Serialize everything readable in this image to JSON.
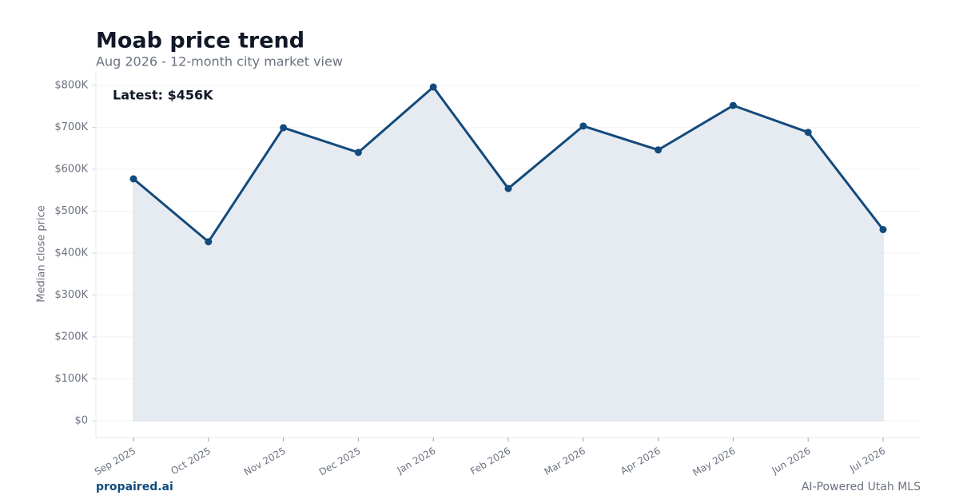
{
  "chart_data": {
    "type": "line",
    "title": "Moab price trend",
    "subtitle": "Aug 2026 - 12-month city market view",
    "y_label": "Median close price",
    "annotation": "Latest: $456K",
    "categories": [
      "Sep 2025",
      "Oct 2025",
      "Nov 2025",
      "Dec 2025",
      "Jan 2026",
      "Feb 2026",
      "Mar 2026",
      "Apr 2026",
      "May 2026",
      "Jun 2026",
      "Jul 2026"
    ],
    "values": [
      577000,
      427000,
      699000,
      640000,
      796000,
      554000,
      703000,
      646000,
      752000,
      688000,
      456000
    ],
    "color": "#134a7c",
    "area_color": "#e6ebf2",
    "ylim": [
      -40000,
      836000
    ],
    "yticks": [
      {
        "value": 0,
        "label": "$0"
      },
      {
        "value": 100000,
        "label": "$100K"
      },
      {
        "value": 200000,
        "label": "$200K"
      },
      {
        "value": 300000,
        "label": "$300K"
      },
      {
        "value": 400000,
        "label": "$400K"
      },
      {
        "value": 500000,
        "label": "$500K"
      },
      {
        "value": 600000,
        "label": "$600K"
      },
      {
        "value": 700000,
        "label": "$700K"
      },
      {
        "value": 800000,
        "label": "$800K"
      }
    ],
    "grid": true,
    "footer_left": "propaired.ai",
    "footer_right": "AI-Powered Utah MLS"
  }
}
